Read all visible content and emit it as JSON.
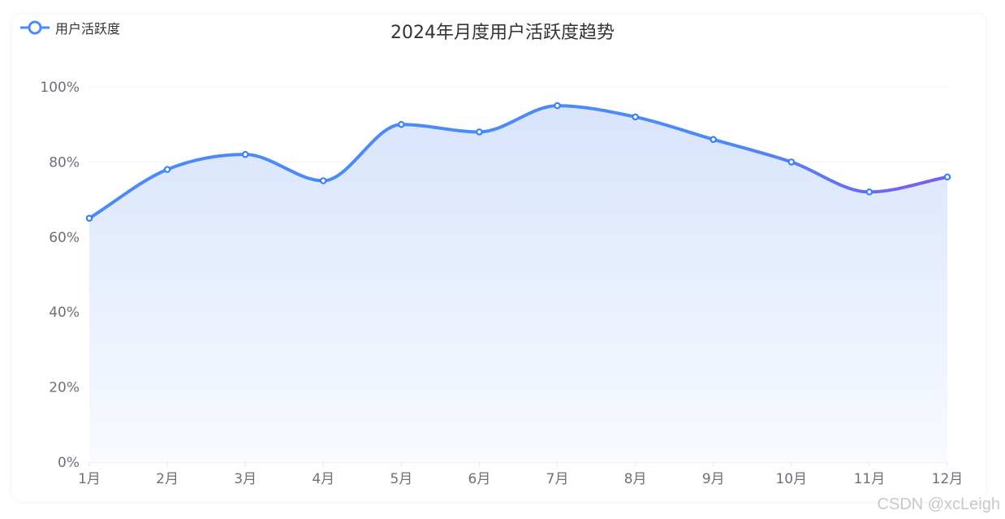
{
  "chart_data": {
    "type": "area",
    "title": "2024年月度用户活跃度趋势",
    "categories": [
      "1月",
      "2月",
      "3月",
      "4月",
      "5月",
      "6月",
      "7月",
      "8月",
      "9月",
      "10月",
      "11月",
      "12月"
    ],
    "series": [
      {
        "name": "用户活跃度",
        "values": [
          65,
          78,
          82,
          75,
          90,
          88,
          95,
          92,
          86,
          80,
          72,
          76
        ]
      }
    ],
    "ylim": [
      0,
      100
    ],
    "yticks": [
      "0%",
      "20%",
      "40%",
      "60%",
      "80%",
      "100%"
    ],
    "ytick_values": [
      0,
      20,
      40,
      60,
      80,
      100
    ],
    "smooth": true,
    "grid": true,
    "legend_position": "top-left",
    "colors": {
      "line_start": "#4c8af5",
      "line_end": "#7a5cf0",
      "area_top": "#d8e4fc",
      "area_bottom": "#f8faff",
      "marker": "#3b82f6"
    }
  },
  "watermark": "CSDN @xcLeigh"
}
